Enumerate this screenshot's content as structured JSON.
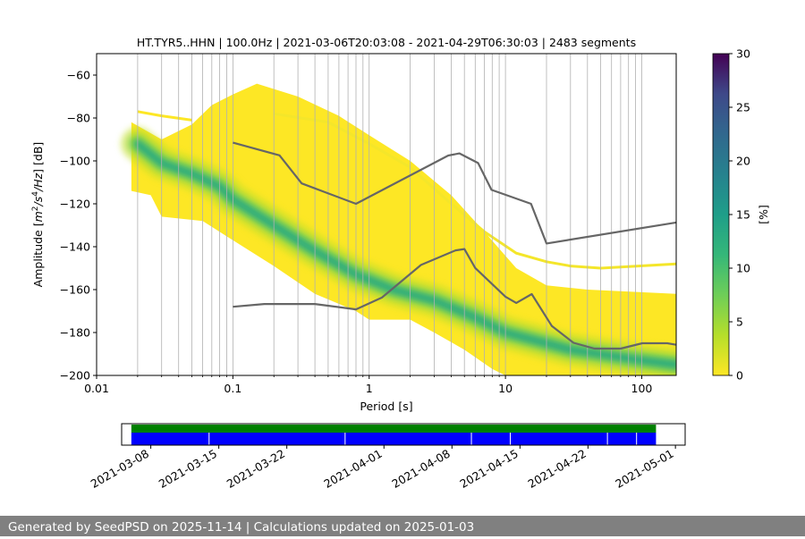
{
  "chart_data": {
    "type": "heatmap",
    "title": "HT.TYR5..HHN | 100.0Hz | 2021-03-06T20:03:08 - 2021-04-29T06:30:03 | 2483 segments",
    "xlabel": "Period [s]",
    "ylabel": "Amplitude [m²/s⁴/Hz] [dB]",
    "xscale": "log",
    "xlim": [
      0.01,
      179
    ],
    "ylim": [
      -200,
      -50
    ],
    "grid": true,
    "x_ticks": [
      {
        "v": 0.01,
        "label": "0.01"
      },
      {
        "v": 0.1,
        "label": "0.1"
      },
      {
        "v": 1,
        "label": "1"
      },
      {
        "v": 10,
        "label": "10"
      },
      {
        "v": 100,
        "label": "100"
      }
    ],
    "y_ticks": [
      {
        "v": -60,
        "label": "−60"
      },
      {
        "v": -80,
        "label": "−80"
      },
      {
        "v": -100,
        "label": "−100"
      },
      {
        "v": -120,
        "label": "−120"
      },
      {
        "v": -140,
        "label": "−140"
      },
      {
        "v": -160,
        "label": "−160"
      },
      {
        "v": -180,
        "label": "−180"
      },
      {
        "v": -200,
        "label": "−200"
      }
    ],
    "colorbar": {
      "label": "[%]",
      "min": 0,
      "max": 30,
      "ticks": [
        {
          "v": 0,
          "label": "0"
        },
        {
          "v": 5,
          "label": "5"
        },
        {
          "v": 10,
          "label": "10"
        },
        {
          "v": 15,
          "label": "15"
        },
        {
          "v": 20,
          "label": "20"
        },
        {
          "v": 25,
          "label": "25"
        },
        {
          "v": 30,
          "label": "30"
        }
      ]
    },
    "psd_density": {
      "colormap": "viridis",
      "mode_curve": [
        {
          "x": 0.02,
          "y": -92
        },
        {
          "x": 0.03,
          "y": -101
        },
        {
          "x": 0.05,
          "y": -106
        },
        {
          "x": 0.08,
          "y": -112
        },
        {
          "x": 0.1,
          "y": -118
        },
        {
          "x": 0.2,
          "y": -130
        },
        {
          "x": 0.4,
          "y": -142
        },
        {
          "x": 0.8,
          "y": -153
        },
        {
          "x": 1.5,
          "y": -160
        },
        {
          "x": 3,
          "y": -165
        },
        {
          "x": 6,
          "y": -173
        },
        {
          "x": 10,
          "y": -180
        },
        {
          "x": 30,
          "y": -188
        },
        {
          "x": 100,
          "y": -193
        },
        {
          "x": 179,
          "y": -195
        }
      ],
      "upper_envelope": [
        {
          "x": 0.018,
          "y": -82
        },
        {
          "x": 0.03,
          "y": -90
        },
        {
          "x": 0.05,
          "y": -83
        },
        {
          "x": 0.07,
          "y": -74
        },
        {
          "x": 0.1,
          "y": -69
        },
        {
          "x": 0.15,
          "y": -64
        },
        {
          "x": 0.3,
          "y": -70
        },
        {
          "x": 0.6,
          "y": -79
        },
        {
          "x": 1,
          "y": -88
        },
        {
          "x": 2,
          "y": -100
        },
        {
          "x": 4,
          "y": -116
        },
        {
          "x": 7,
          "y": -133
        },
        {
          "x": 12,
          "y": -150
        },
        {
          "x": 20,
          "y": -158
        },
        {
          "x": 40,
          "y": -160
        },
        {
          "x": 179,
          "y": -162
        }
      ],
      "lower_envelope": [
        {
          "x": 0.018,
          "y": -114
        },
        {
          "x": 0.025,
          "y": -116
        },
        {
          "x": 0.03,
          "y": -126
        },
        {
          "x": 0.06,
          "y": -128
        },
        {
          "x": 0.1,
          "y": -137
        },
        {
          "x": 0.2,
          "y": -149
        },
        {
          "x": 0.4,
          "y": -162
        },
        {
          "x": 0.8,
          "y": -170
        },
        {
          "x": 1,
          "y": -174
        },
        {
          "x": 2,
          "y": -174
        },
        {
          "x": 3,
          "y": -180
        },
        {
          "x": 5,
          "y": -188
        },
        {
          "x": 8,
          "y": -197
        },
        {
          "x": 10,
          "y": -200
        },
        {
          "x": 179,
          "y": -200
        }
      ],
      "outliers": [
        [
          {
            "x": 0.02,
            "y": -77
          },
          {
            "x": 0.03,
            "y": -79
          },
          {
            "x": 0.05,
            "y": -81
          }
        ]
      ],
      "secondary_branch": [
        {
          "x": 0.2,
          "y": -78
        },
        {
          "x": 0.5,
          "y": -82
        },
        {
          "x": 1,
          "y": -92
        },
        {
          "x": 2,
          "y": -103
        },
        {
          "x": 4,
          "y": -120
        },
        {
          "x": 7,
          "y": -133
        },
        {
          "x": 12,
          "y": -143
        },
        {
          "x": 20,
          "y": -147
        },
        {
          "x": 30,
          "y": -149
        },
        {
          "x": 50,
          "y": -150
        },
        {
          "x": 179,
          "y": -148
        }
      ]
    },
    "series": [
      {
        "line_color": "#666666",
        "points": [
          {
            "x": 0.1,
            "y": -91.5
          },
          {
            "x": 0.22,
            "y": -97.4
          },
          {
            "x": 0.32,
            "y": -110.5
          },
          {
            "x": 0.8,
            "y": -120.0
          },
          {
            "x": 3.8,
            "y": -97.5
          },
          {
            "x": 4.6,
            "y": -96.5
          },
          {
            "x": 6.3,
            "y": -101.0
          },
          {
            "x": 7.9,
            "y": -113.5
          },
          {
            "x": 15.4,
            "y": -120.0
          },
          {
            "x": 20.0,
            "y": -138.5
          },
          {
            "x": 179,
            "y": -128.7
          }
        ]
      },
      {
        "line_color": "#666666",
        "points": [
          {
            "x": 0.1,
            "y": -168.0
          },
          {
            "x": 0.17,
            "y": -166.7
          },
          {
            "x": 0.4,
            "y": -166.7
          },
          {
            "x": 0.8,
            "y": -169.2
          },
          {
            "x": 1.24,
            "y": -163.7
          },
          {
            "x": 2.4,
            "y": -148.5
          },
          {
            "x": 4.3,
            "y": -141.7
          },
          {
            "x": 5.0,
            "y": -141.1
          },
          {
            "x": 6.0,
            "y": -149.9
          },
          {
            "x": 10.0,
            "y": -163.3
          },
          {
            "x": 12.0,
            "y": -166.2
          },
          {
            "x": 15.6,
            "y": -162.1
          },
          {
            "x": 21.9,
            "y": -177.0
          },
          {
            "x": 31.6,
            "y": -184.8
          },
          {
            "x": 45.0,
            "y": -187.5
          },
          {
            "x": 70.0,
            "y": -187.5
          },
          {
            "x": 101.0,
            "y": -185.0
          },
          {
            "x": 154.0,
            "y": -185.0
          },
          {
            "x": 179,
            "y": -185.7
          }
        ]
      }
    ],
    "timeline": {
      "x_start": "2021-03-05",
      "x_end": "2021-05-02",
      "data_start": "2021-03-06",
      "data_end": "2021-04-29",
      "top_bar_color": "#008000",
      "bottom_bar_color": "#0000ff",
      "gap_dates": [
        "2021-03-14",
        "2021-03-28",
        "2021-04-10",
        "2021-04-14",
        "2021-04-24",
        "2021-04-27"
      ],
      "ticks": [
        "2021-03-08",
        "2021-03-15",
        "2021-03-22",
        "2021-04-01",
        "2021-04-08",
        "2021-04-15",
        "2021-04-22",
        "2021-05-01"
      ]
    }
  },
  "footer": {
    "text": "Generated by SeedPSD on 2025-11-14 | Calculations updated on 2025-01-03"
  }
}
